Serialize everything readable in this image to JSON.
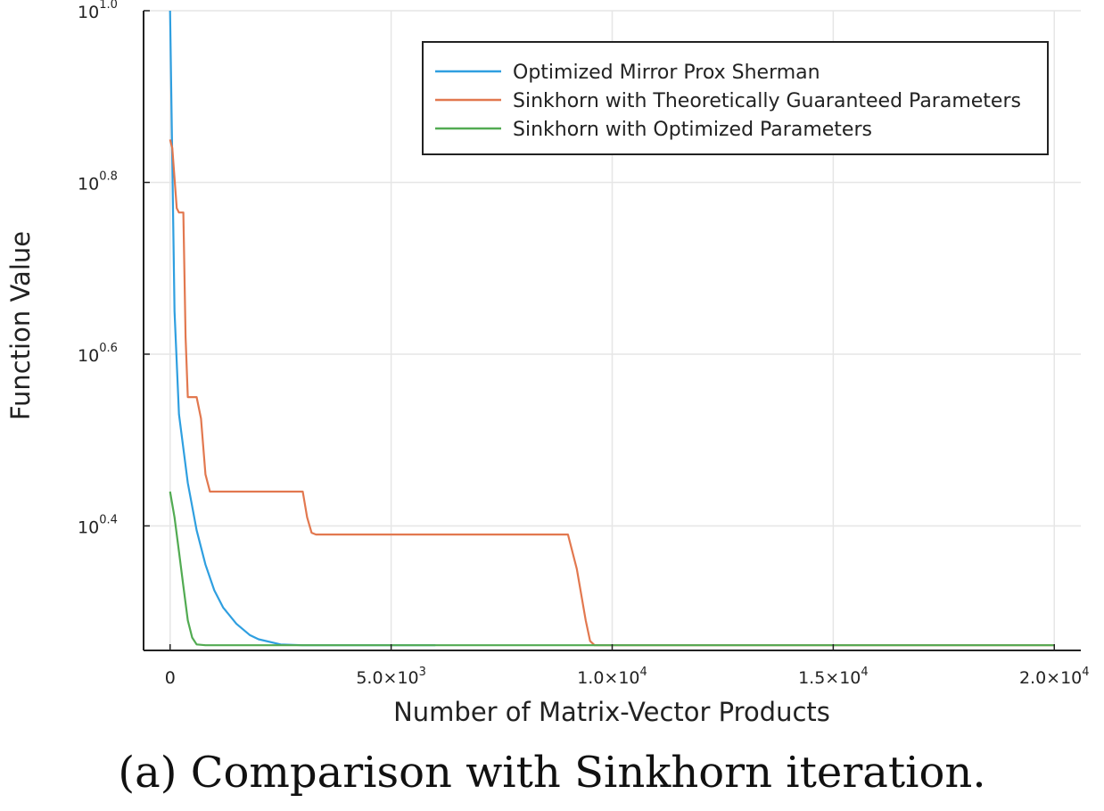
{
  "caption": "(a) Comparison with Sinkhorn iteration.",
  "chart_data": {
    "type": "line",
    "xlabel": "Number of Matrix-Vector Products",
    "ylabel": "Function Value",
    "xlim": [
      -600,
      20600
    ],
    "ylim": [
      0.255,
      1.0
    ],
    "yscale": "log10",
    "grid": true,
    "legend_position": "top-right",
    "x_ticks": [
      {
        "value": 0,
        "label": "0"
      },
      {
        "value": 5000,
        "label": "5.0×10",
        "exp": "3"
      },
      {
        "value": 10000,
        "label": "1.0×10",
        "exp": "4"
      },
      {
        "value": 15000,
        "label": "1.5×10",
        "exp": "4"
      },
      {
        "value": 20000,
        "label": "2.0×10",
        "exp": "4"
      }
    ],
    "y_ticks": [
      {
        "value": 1.0,
        "label": "10",
        "exp": "1.0"
      },
      {
        "value": 0.8,
        "label": "10",
        "exp": "0.8"
      },
      {
        "value": 0.6,
        "label": "10",
        "exp": "0.6"
      },
      {
        "value": 0.4,
        "label": "10",
        "exp": "0.4"
      }
    ],
    "series": [
      {
        "name": "Optimized Mirror Prox Sherman",
        "color": "#2f9fe0",
        "x": [
          0,
          100,
          200,
          400,
          600,
          800,
          1000,
          1200,
          1500,
          1800,
          2000,
          2500,
          3000,
          4000,
          5000,
          6000
        ],
        "y": [
          1.0,
          0.65,
          0.53,
          0.45,
          0.395,
          0.355,
          0.325,
          0.305,
          0.286,
          0.273,
          0.268,
          0.262,
          0.261,
          0.261,
          0.261,
          0.261
        ]
      },
      {
        "name": "Sinkhorn with Theoretically Guaranteed Parameters",
        "color": "#e2784f",
        "x": [
          0,
          50,
          150,
          200,
          300,
          350,
          400,
          600,
          700,
          800,
          900,
          1000,
          2000,
          3000,
          3100,
          3200,
          3300,
          3500,
          5000,
          8000,
          9000,
          9200,
          9400,
          9500,
          9600,
          10000,
          15000,
          20000
        ],
        "y": [
          0.85,
          0.84,
          0.77,
          0.765,
          0.765,
          0.62,
          0.55,
          0.55,
          0.525,
          0.46,
          0.44,
          0.44,
          0.44,
          0.44,
          0.41,
          0.392,
          0.39,
          0.39,
          0.39,
          0.39,
          0.39,
          0.35,
          0.29,
          0.266,
          0.261,
          0.261,
          0.261,
          0.261
        ]
      },
      {
        "name": "Sinkhorn with Optimized Parameters",
        "color": "#52ab52",
        "x": [
          0,
          100,
          200,
          300,
          400,
          500,
          600,
          800,
          1000,
          2000,
          5000,
          10000,
          15000,
          20000
        ],
        "y": [
          0.44,
          0.41,
          0.37,
          0.33,
          0.29,
          0.27,
          0.262,
          0.261,
          0.261,
          0.261,
          0.261,
          0.261,
          0.261,
          0.261
        ]
      }
    ]
  }
}
